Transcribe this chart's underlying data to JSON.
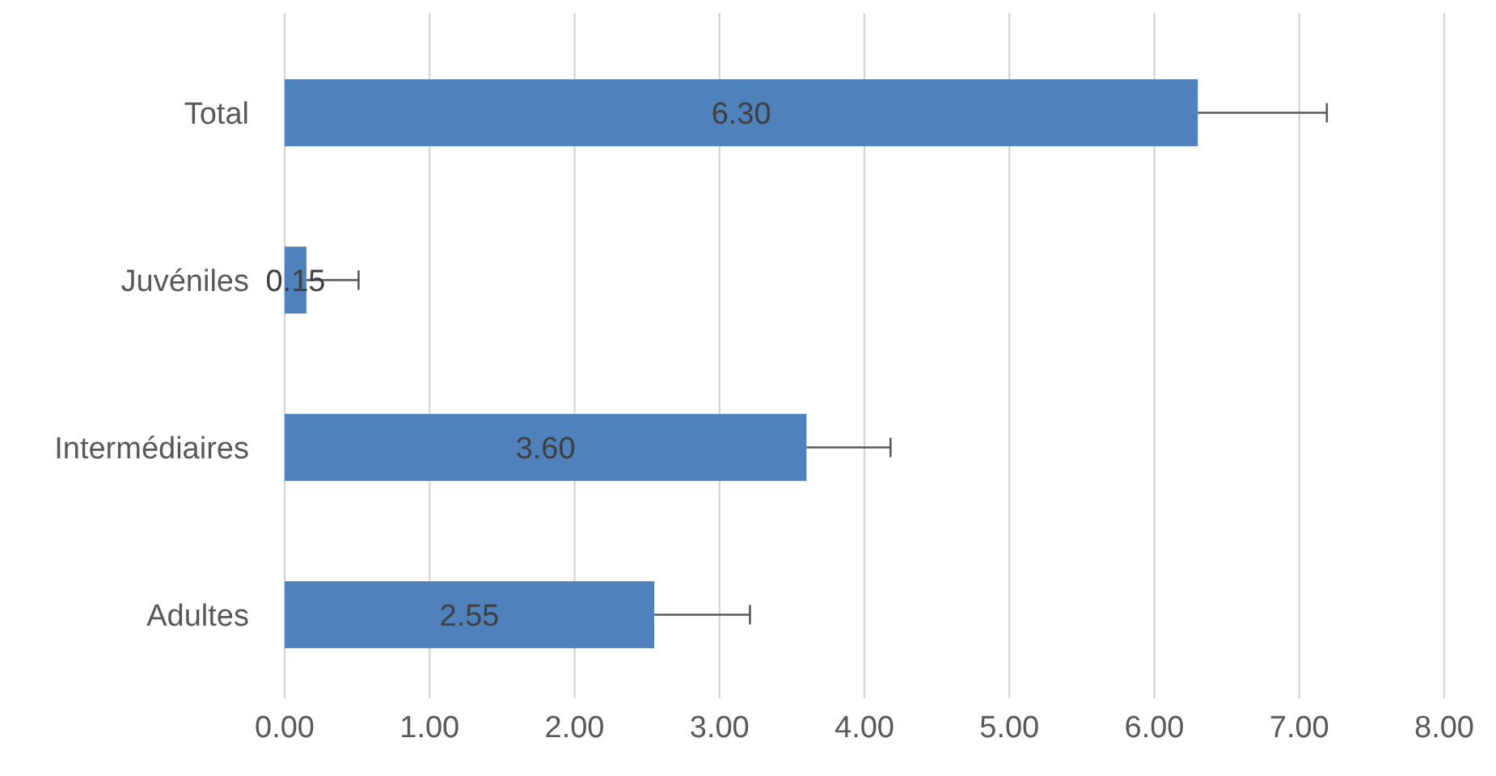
{
  "chart_data": {
    "type": "bar",
    "orientation": "horizontal",
    "categories": [
      "Total",
      "Juvéniles",
      "Intermédiaires",
      "Adultes"
    ],
    "values": [
      6.3,
      0.15,
      3.6,
      2.55
    ],
    "errors": [
      [
        6.3,
        7.19
      ],
      [
        0.15,
        0.51
      ],
      [
        3.6,
        4.18
      ],
      [
        2.55,
        3.21
      ]
    ],
    "value_labels": [
      "6.30",
      "0.15",
      "3.60",
      "2.55"
    ],
    "color": "#4f81bd",
    "grid": "x",
    "xlim": [
      0,
      8
    ],
    "xticks": [
      {
        "value": 0,
        "label": "0.00"
      },
      {
        "value": 1,
        "label": "1.00"
      },
      {
        "value": 2,
        "label": "2.00"
      },
      {
        "value": 3,
        "label": "3.00"
      },
      {
        "value": 4,
        "label": "4.00"
      },
      {
        "value": 5,
        "label": "5.00"
      },
      {
        "value": 6,
        "label": "6.00"
      },
      {
        "value": 7,
        "label": "7.00"
      },
      {
        "value": 8,
        "label": "8.00"
      }
    ]
  }
}
